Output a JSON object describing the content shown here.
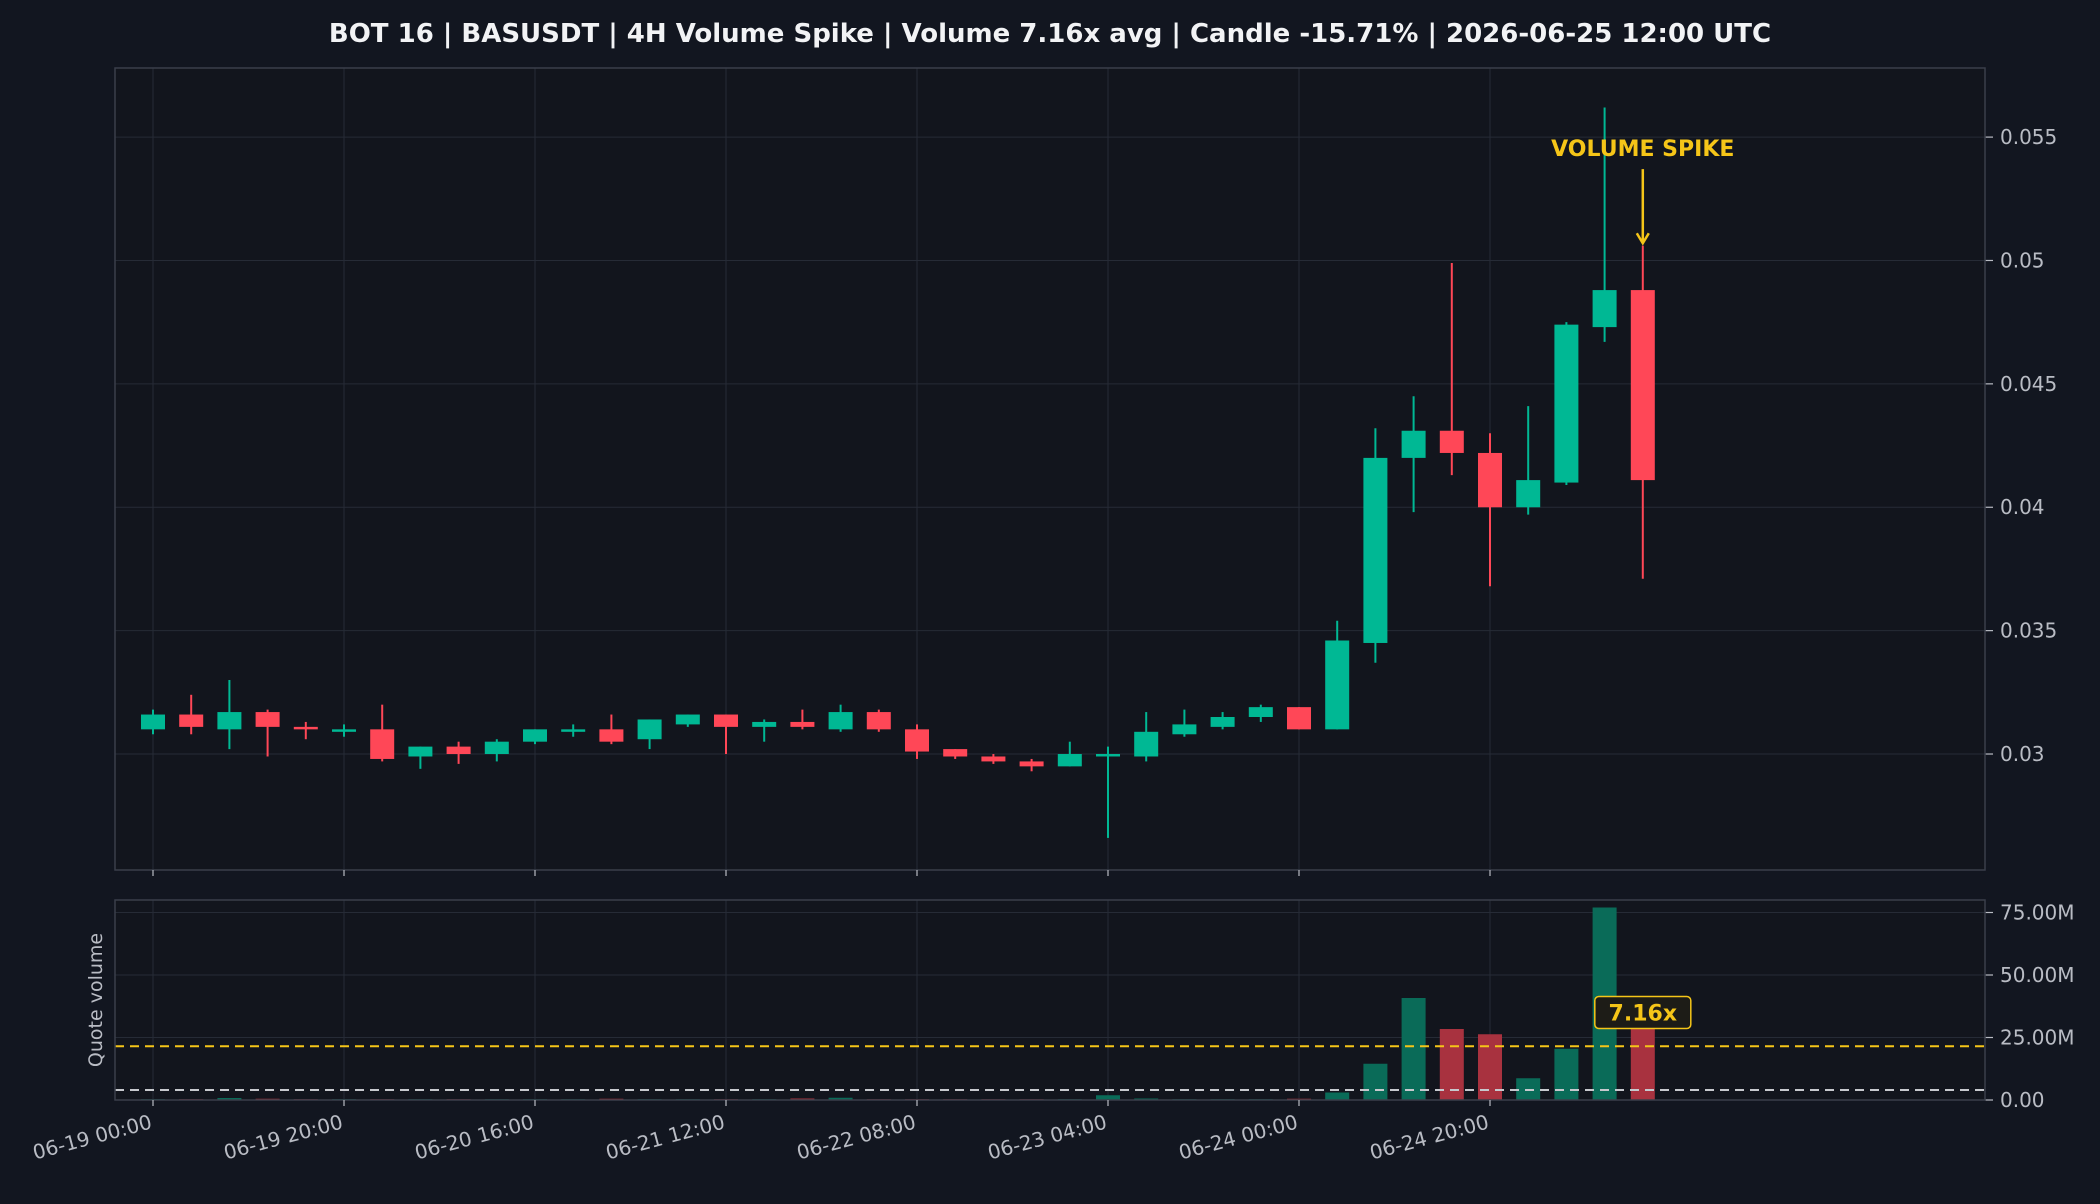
{
  "colors": {
    "background": "#121620",
    "panel": "#12151d",
    "grid": "#262b36",
    "frame": "#3a3f4a",
    "text": "#f2f3f5",
    "tick_text": "#b9bcc4",
    "up": "#00b894",
    "down": "#ff4757",
    "up_volume": "#0a6b58",
    "down_volume": "#a8323f",
    "accent": "#f5c518",
    "baseline": "#c7c9ce"
  },
  "chart_data": {
    "type": "candlestick",
    "title": "BOT 16 | BASUSDT | 4H Volume Spike | Volume 7.16x avg | Candle -15.71% | 2026-06-25 12:00 UTC",
    "symbol": "BASUSDT",
    "interval": "4H",
    "x_tick_labels": [
      "06-19 00:00",
      "06-19 20:00",
      "06-20 16:00",
      "06-21 12:00",
      "06-22 08:00",
      "06-23 04:00",
      "06-24 00:00",
      "06-24 20:00"
    ],
    "x_tick_index": [
      0,
      5,
      10,
      15,
      20,
      25,
      30,
      35
    ],
    "price_axis": {
      "range": [
        0.0253,
        0.0578
      ],
      "ticks": [
        0.03,
        0.035,
        0.04,
        0.045,
        0.05,
        0.055
      ],
      "tick_labels": [
        "0.03",
        "0.035",
        "0.04",
        "0.045",
        "0.05",
        "0.055"
      ],
      "grid": true
    },
    "volume_axis": {
      "label": "Quote volume",
      "range": [
        0,
        80
      ],
      "ticks": [
        0,
        25,
        50,
        75
      ],
      "tick_labels": [
        "0.00",
        "25.00M",
        "50.00M",
        "75.00M"
      ],
      "unit": "M",
      "grid": true
    },
    "candles": [
      {
        "o": 0.031,
        "h": 0.0318,
        "l": 0.0308,
        "c": 0.0316
      },
      {
        "o": 0.0316,
        "h": 0.0324,
        "l": 0.0308,
        "c": 0.0311
      },
      {
        "o": 0.031,
        "h": 0.033,
        "l": 0.0302,
        "c": 0.0317
      },
      {
        "o": 0.0317,
        "h": 0.0318,
        "l": 0.0299,
        "c": 0.0311
      },
      {
        "o": 0.0311,
        "h": 0.0313,
        "l": 0.0306,
        "c": 0.031
      },
      {
        "o": 0.0309,
        "h": 0.0312,
        "l": 0.0307,
        "c": 0.031
      },
      {
        "o": 0.031,
        "h": 0.032,
        "l": 0.0297,
        "c": 0.0298
      },
      {
        "o": 0.0299,
        "h": 0.0303,
        "l": 0.0294,
        "c": 0.0303
      },
      {
        "o": 0.0303,
        "h": 0.0305,
        "l": 0.0296,
        "c": 0.03
      },
      {
        "o": 0.03,
        "h": 0.0306,
        "l": 0.0297,
        "c": 0.0305
      },
      {
        "o": 0.0305,
        "h": 0.031,
        "l": 0.0304,
        "c": 0.031
      },
      {
        "o": 0.0309,
        "h": 0.0312,
        "l": 0.0307,
        "c": 0.031
      },
      {
        "o": 0.031,
        "h": 0.0316,
        "l": 0.0304,
        "c": 0.0305
      },
      {
        "o": 0.0306,
        "h": 0.0314,
        "l": 0.0302,
        "c": 0.0314
      },
      {
        "o": 0.0312,
        "h": 0.0316,
        "l": 0.0311,
        "c": 0.0316
      },
      {
        "o": 0.0316,
        "h": 0.0316,
        "l": 0.03,
        "c": 0.0311
      },
      {
        "o": 0.0311,
        "h": 0.0314,
        "l": 0.0305,
        "c": 0.0313
      },
      {
        "o": 0.0313,
        "h": 0.0318,
        "l": 0.031,
        "c": 0.0311
      },
      {
        "o": 0.031,
        "h": 0.032,
        "l": 0.0309,
        "c": 0.0317
      },
      {
        "o": 0.0317,
        "h": 0.0318,
        "l": 0.0309,
        "c": 0.031
      },
      {
        "o": 0.031,
        "h": 0.0312,
        "l": 0.0298,
        "c": 0.0301
      },
      {
        "o": 0.0302,
        "h": 0.0302,
        "l": 0.0298,
        "c": 0.0299
      },
      {
        "o": 0.0299,
        "h": 0.03,
        "l": 0.0296,
        "c": 0.0297
      },
      {
        "o": 0.0297,
        "h": 0.0298,
        "l": 0.0293,
        "c": 0.0295
      },
      {
        "o": 0.0295,
        "h": 0.0305,
        "l": 0.0295,
        "c": 0.03
      },
      {
        "o": 0.0299,
        "h": 0.0303,
        "l": 0.0266,
        "c": 0.03
      },
      {
        "o": 0.0299,
        "h": 0.0317,
        "l": 0.0297,
        "c": 0.0309
      },
      {
        "o": 0.0308,
        "h": 0.0318,
        "l": 0.0307,
        "c": 0.0312
      },
      {
        "o": 0.0311,
        "h": 0.0317,
        "l": 0.031,
        "c": 0.0315
      },
      {
        "o": 0.0315,
        "h": 0.032,
        "l": 0.0313,
        "c": 0.0319
      },
      {
        "o": 0.0319,
        "h": 0.0319,
        "l": 0.031,
        "c": 0.031
      },
      {
        "o": 0.031,
        "h": 0.0354,
        "l": 0.031,
        "c": 0.0346
      },
      {
        "o": 0.0345,
        "h": 0.0432,
        "l": 0.0337,
        "c": 0.042
      },
      {
        "o": 0.042,
        "h": 0.0445,
        "l": 0.0398,
        "c": 0.0431
      },
      {
        "o": 0.0431,
        "h": 0.0499,
        "l": 0.0413,
        "c": 0.0422
      },
      {
        "o": 0.0422,
        "h": 0.043,
        "l": 0.0368,
        "c": 0.04
      },
      {
        "o": 0.04,
        "h": 0.0441,
        "l": 0.0397,
        "c": 0.0411
      },
      {
        "o": 0.041,
        "h": 0.0475,
        "l": 0.0409,
        "c": 0.0474
      },
      {
        "o": 0.0473,
        "h": 0.0562,
        "l": 0.0467,
        "c": 0.0488
      },
      {
        "o": 0.0488,
        "h": 0.0506,
        "l": 0.0371,
        "c": 0.0411
      }
    ],
    "volumes": [
      0.3,
      0.2,
      0.8,
      0.5,
      0.2,
      0.1,
      0.3,
      0.2,
      0.2,
      0.2,
      0.2,
      0.1,
      0.5,
      0.3,
      0.2,
      0.3,
      0.2,
      0.6,
      0.9,
      0.3,
      0.3,
      0.2,
      0.2,
      0.1,
      0.1,
      1.9,
      0.6,
      0.2,
      0.2,
      0.3,
      0.5,
      3.0,
      14.5,
      40.8,
      28.4,
      26.3,
      8.7,
      20.5,
      77.0,
      29.2
    ],
    "reference_lines": [
      {
        "value": 21.5,
        "style": "dashed",
        "color": "accent"
      },
      {
        "value": 4.0,
        "style": "dashed",
        "color": "baseline"
      }
    ],
    "annotations": {
      "spike_label": "VOLUME SPIKE",
      "spike_index": 39,
      "spike_arrow_from_price": 0.0537,
      "spike_arrow_to_price": 0.0507,
      "ratio_label": "7.16x",
      "ratio_label_value": 35
    }
  }
}
